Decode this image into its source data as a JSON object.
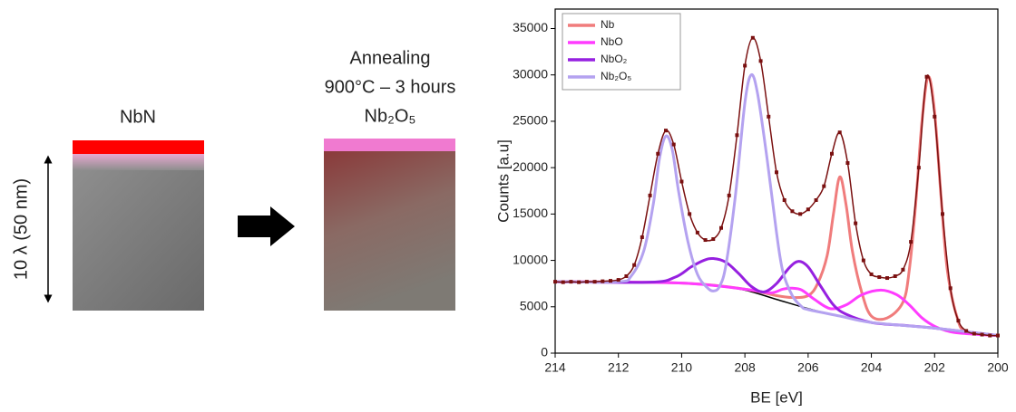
{
  "diagram": {
    "left_label": "NbN",
    "thickness_label": "10 λ (50 nm)",
    "right_title": [
      "Annealing",
      "900°C – 3 hours"
    ],
    "right_label": "Nb₂O₅"
  },
  "chart_data": {
    "type": "line",
    "x_label": "BE [eV]",
    "y_label": "Counts [a.u]",
    "xlim": [
      214,
      200
    ],
    "xticks": [
      214,
      212,
      210,
      208,
      206,
      204,
      202,
      200
    ],
    "ylim": [
      0,
      37100
    ],
    "yticks": [
      0,
      5000,
      10000,
      15000,
      20000,
      25000,
      30000,
      35000
    ],
    "legend": "upper left",
    "series": [
      {
        "color": "#000000",
        "x": [
          214,
          212,
          211,
          210,
          209,
          208,
          207,
          206,
          205,
          204,
          203,
          202,
          201,
          200
        ],
        "values": [
          7700,
          7700,
          7650,
          7550,
          7300,
          6800,
          5800,
          4800,
          4000,
          3300,
          3000,
          2700,
          2100,
          1900
        ]
      },
      {
        "name": "Nb",
        "color": "#f07c7c",
        "x": [
          214,
          210,
          208,
          207,
          206.5,
          206,
          205.7,
          205.4,
          205.2,
          205.0,
          204.8,
          204.6,
          204.3,
          204.0,
          203.5,
          203.0,
          202.8,
          202.6,
          202.4,
          202.2,
          202.0,
          201.8,
          201.6,
          201.3,
          201,
          200
        ],
        "values": [
          7700,
          7550,
          6900,
          6200,
          6000,
          6200,
          7500,
          10500,
          15000,
          19000,
          16000,
          11000,
          6500,
          4000,
          3800,
          5500,
          9000,
          16000,
          25000,
          29800,
          26000,
          17000,
          9000,
          4000,
          2300,
          1900
        ]
      },
      {
        "name": "NbO",
        "color": "#ff3cff",
        "x": [
          214,
          210,
          208,
          207.2,
          206.8,
          206.5,
          206.2,
          205.8,
          205.3,
          204.8,
          204.3,
          203.7,
          203.2,
          202.8,
          202.4,
          202,
          201.5,
          201,
          200
        ],
        "values": [
          7700,
          7550,
          6900,
          6500,
          6900,
          7000,
          6800,
          5800,
          4800,
          5200,
          6300,
          6800,
          6300,
          5200,
          3800,
          2900,
          2300,
          2100,
          1900
        ]
      },
      {
        "name": "NbO₂",
        "color": "#9620e0",
        "x": [
          214,
          211,
          210.2,
          209.7,
          209.3,
          209,
          208.6,
          208.2,
          207.8,
          207.4,
          207,
          206.6,
          206.3,
          206,
          205.6,
          205.2,
          204.8,
          204,
          203,
          202,
          200
        ],
        "values": [
          7700,
          7650,
          8200,
          9300,
          10000,
          10200,
          9800,
          8600,
          7200,
          6600,
          7500,
          9200,
          9900,
          9300,
          7200,
          5200,
          4200,
          3300,
          3000,
          2700,
          1900
        ]
      },
      {
        "name": "Nb₂O₅",
        "color": "#b4a2f0",
        "x": [
          214,
          212,
          211.6,
          211.2,
          210.9,
          210.7,
          210.5,
          210.3,
          210.1,
          209.8,
          209.5,
          209.2,
          209,
          208.8,
          208.6,
          208.3,
          208.0,
          207.8,
          207.6,
          207.3,
          207.0,
          206.8,
          206.5,
          206.2,
          206,
          205,
          204,
          202,
          200
        ],
        "values": [
          7700,
          7700,
          8300,
          11000,
          16000,
          21000,
          23400,
          22000,
          17500,
          12000,
          8500,
          7100,
          6700,
          7200,
          9500,
          17000,
          27000,
          30000,
          28000,
          21000,
          13000,
          8800,
          6200,
          5000,
          4700,
          4000,
          3300,
          2700,
          1900
        ]
      },
      {
        "color": "#7a1010",
        "marker": "square",
        "x": [
          214,
          213.75,
          213.5,
          213.25,
          213,
          212.75,
          212.5,
          212.25,
          212,
          211.75,
          211.5,
          211.25,
          211,
          210.75,
          210.5,
          210.25,
          210,
          209.75,
          209.5,
          209.25,
          209,
          208.75,
          208.5,
          208.25,
          208,
          207.75,
          207.5,
          207.25,
          207,
          206.75,
          206.5,
          206.25,
          206,
          205.75,
          205.5,
          205.25,
          205,
          204.75,
          204.5,
          204.25,
          204,
          203.75,
          203.5,
          203.25,
          203,
          202.75,
          202.5,
          202.25,
          202,
          201.75,
          201.5,
          201.25,
          201,
          200.75,
          200.5,
          200.25,
          200
        ],
        "values": [
          7700,
          7650,
          7700,
          7650,
          7700,
          7700,
          7750,
          7800,
          7900,
          8300,
          9500,
          12500,
          17000,
          21500,
          24000,
          22500,
          18500,
          15000,
          13000,
          12200,
          12300,
          13500,
          17000,
          23500,
          31000,
          34000,
          31500,
          25500,
          19500,
          16500,
          15300,
          15000,
          15500,
          16500,
          18000,
          21500,
          23800,
          20500,
          14000,
          10000,
          8500,
          8200,
          8100,
          8300,
          9000,
          12000,
          20000,
          29800,
          25500,
          15000,
          7000,
          3500,
          2400,
          2100,
          2000,
          1900,
          1900
        ]
      }
    ]
  }
}
